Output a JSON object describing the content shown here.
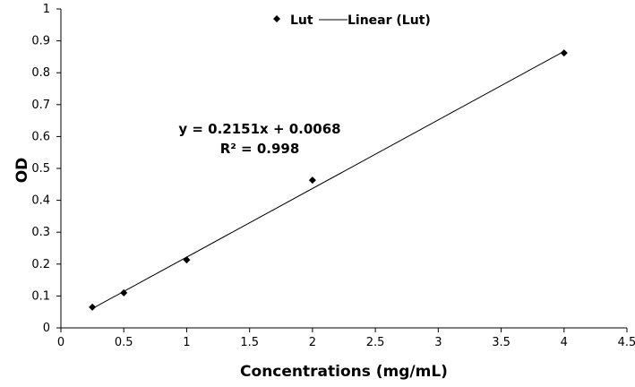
{
  "chart_data": {
    "type": "scatter",
    "title": "",
    "xlabel": "Concentrations  (mg/mL)",
    "ylabel": "OD",
    "xlim": [
      0,
      4.5
    ],
    "ylim": [
      0,
      1
    ],
    "xticks": [
      "0",
      "0.5",
      "1",
      "1.5",
      "2",
      "2.5",
      "3",
      "3.5",
      "4",
      "4.5"
    ],
    "yticks": [
      "0",
      "0.1",
      "0.2",
      "0.3",
      "0.4",
      "0.5",
      "0.6",
      "0.7",
      "0.8",
      "0.9",
      "1"
    ],
    "grid": false,
    "legend_position": "top-center",
    "series": [
      {
        "name": "Lut",
        "x": [
          0.25,
          0.5,
          1,
          2,
          4
        ],
        "y": [
          0.065,
          0.11,
          0.213,
          0.463,
          0.862
        ],
        "color": "#000000",
        "marker": "diamond"
      }
    ],
    "trendline": {
      "name": "Linear (Lut)",
      "slope": 0.2151,
      "intercept": 0.0068,
      "x_range": [
        0.25,
        4
      ],
      "color": "#000000"
    },
    "annotations": {
      "equation": "y = 0.2151x + 0.0068",
      "r2": "R² = 0.998"
    }
  }
}
